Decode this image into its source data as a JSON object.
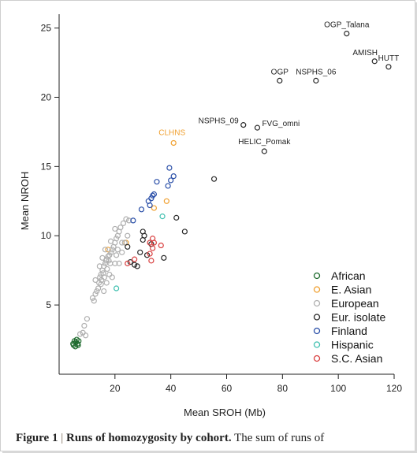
{
  "caption": {
    "figure_label": "Figure 1",
    "separator": "|",
    "title": "Runs of homozygosity by cohort.",
    "text": "The sum of runs of"
  },
  "chart_data": {
    "type": "scatter",
    "xlabel": "Mean SROH (Mb)",
    "ylabel": "Mean NROH",
    "xlim": [
      0,
      120
    ],
    "ylim": [
      0,
      26
    ],
    "xticks": [
      20,
      40,
      60,
      80,
      100,
      120
    ],
    "yticks": [
      5,
      10,
      15,
      20,
      25
    ],
    "grid": false,
    "legend_position": "bottom-right",
    "series": [
      {
        "name": "African",
        "color": "#1f6b2e",
        "points": [
          [
            5.0,
            2.2
          ],
          [
            5.5,
            2.4
          ],
          [
            5.8,
            2.0
          ],
          [
            6.0,
            2.3
          ],
          [
            6.3,
            2.5
          ],
          [
            6.6,
            2.2
          ],
          [
            7.0,
            2.4
          ],
          [
            5.2,
            2.1
          ],
          [
            6.8,
            2.1
          ]
        ]
      },
      {
        "name": "E. Asian",
        "color": "#f0a030",
        "points": [
          [
            41,
            16.7
          ],
          [
            38.5,
            12.5
          ],
          [
            34,
            12
          ],
          [
            17.5,
            9.0
          ],
          [
            24,
            9.5
          ]
        ]
      },
      {
        "name": "European",
        "color": "#b0b0b0",
        "points": [
          [
            9,
            3.5
          ],
          [
            10,
            4
          ],
          [
            9.5,
            2.8
          ],
          [
            7.5,
            2.9
          ],
          [
            8.5,
            3.0
          ],
          [
            12,
            5.5
          ],
          [
            12.5,
            5.3
          ],
          [
            13,
            5.8
          ],
          [
            13.5,
            6.0
          ],
          [
            14,
            6.2
          ],
          [
            14.3,
            6.6
          ],
          [
            14.6,
            7.0
          ],
          [
            15,
            7.2
          ],
          [
            15.2,
            6.8
          ],
          [
            15.5,
            7.5
          ],
          [
            15.8,
            7.3
          ],
          [
            16,
            7.8
          ],
          [
            16.2,
            7.0
          ],
          [
            16.5,
            8.0
          ],
          [
            16.8,
            8.2
          ],
          [
            17,
            8.3
          ],
          [
            17.2,
            7.6
          ],
          [
            17.5,
            8.5
          ],
          [
            17.8,
            8.2
          ],
          [
            18,
            8.6
          ],
          [
            18.3,
            8.0
          ],
          [
            18.6,
            8.8
          ],
          [
            19,
            9.0
          ],
          [
            19.5,
            9.2
          ],
          [
            20,
            9.5
          ],
          [
            20.5,
            9.8
          ],
          [
            21,
            10.0
          ],
          [
            21.5,
            10.3
          ],
          [
            22,
            10.6
          ],
          [
            22.5,
            9.5
          ],
          [
            23,
            10.9
          ],
          [
            24,
            11.2
          ],
          [
            25,
            11.1
          ],
          [
            20,
            10.5
          ],
          [
            21,
            9.0
          ],
          [
            15,
            6.5
          ],
          [
            14.5,
            7.8
          ],
          [
            16,
            6.0
          ],
          [
            17,
            6.6
          ],
          [
            18,
            7.2
          ],
          [
            19,
            7.0
          ],
          [
            20.5,
            8.6
          ],
          [
            21.5,
            8.0
          ],
          [
            22.5,
            8.8
          ],
          [
            23.5,
            9.5
          ],
          [
            24.5,
            10.0
          ],
          [
            13,
            6.8
          ],
          [
            15.5,
            8.4
          ],
          [
            16.5,
            9.0
          ],
          [
            18.5,
            9.6
          ],
          [
            20,
            8.0
          ]
        ]
      },
      {
        "name": "Eur. isolate",
        "color": "#2a2a2a",
        "points": [
          [
            103,
            24.6
          ],
          [
            113,
            22.6
          ],
          [
            118,
            22.2
          ],
          [
            79,
            21.2
          ],
          [
            92,
            21.2
          ],
          [
            66,
            18.0
          ],
          [
            71,
            17.8
          ],
          [
            73.5,
            16.1
          ],
          [
            55.5,
            14.1
          ],
          [
            42,
            11.3
          ],
          [
            45,
            10.3
          ],
          [
            37.5,
            8.4
          ],
          [
            30,
            10.3
          ],
          [
            30.5,
            10.0
          ],
          [
            29,
            8.8
          ],
          [
            28,
            7.8
          ],
          [
            27,
            7.9
          ],
          [
            25.5,
            8.1
          ],
          [
            33,
            9.4
          ],
          [
            30,
            9.7
          ],
          [
            31.5,
            8.6
          ],
          [
            24.5,
            9.2
          ]
        ]
      },
      {
        "name": "Finland",
        "color": "#2a4fa8",
        "points": [
          [
            39.5,
            14.9
          ],
          [
            40,
            14.0
          ],
          [
            39,
            13.6
          ],
          [
            35,
            13.9
          ],
          [
            34,
            13.0
          ],
          [
            33,
            12.7
          ],
          [
            32.5,
            12.2
          ],
          [
            32,
            12.5
          ],
          [
            29.5,
            11.9
          ],
          [
            26.5,
            11.1
          ],
          [
            41,
            14.3
          ],
          [
            33.5,
            12.9
          ]
        ]
      },
      {
        "name": "Hispanic",
        "color": "#40c0b0",
        "points": [
          [
            37,
            11.4
          ],
          [
            20.5,
            6.2
          ]
        ]
      },
      {
        "name": "S.C. Asian",
        "color": "#d94040",
        "points": [
          [
            36.5,
            9.3
          ],
          [
            33.5,
            9.8
          ],
          [
            34,
            9.5
          ],
          [
            32.5,
            9.5
          ],
          [
            32.5,
            8.7
          ],
          [
            33,
            8.2
          ],
          [
            27,
            8.3
          ],
          [
            24.5,
            8.0
          ],
          [
            33.5,
            9.1
          ]
        ]
      }
    ],
    "annotations": [
      {
        "text": "OGP_Talana",
        "x": 103,
        "y": 24.6
      },
      {
        "text": "AMISH",
        "x": 113,
        "y": 22.6
      },
      {
        "text": "HUTT",
        "x": 118,
        "y": 22.2
      },
      {
        "text": "OGP",
        "x": 79,
        "y": 21.2
      },
      {
        "text": "NSPHS_06",
        "x": 92,
        "y": 21.2
      },
      {
        "text": "NSPHS_09",
        "x": 66,
        "y": 18.0
      },
      {
        "text": "FVG_omni",
        "x": 71,
        "y": 17.8
      },
      {
        "text": "HELIC_Pomak",
        "x": 73.5,
        "y": 16.1
      },
      {
        "text": "CLHNS",
        "x": 41,
        "y": 16.7
      }
    ]
  }
}
